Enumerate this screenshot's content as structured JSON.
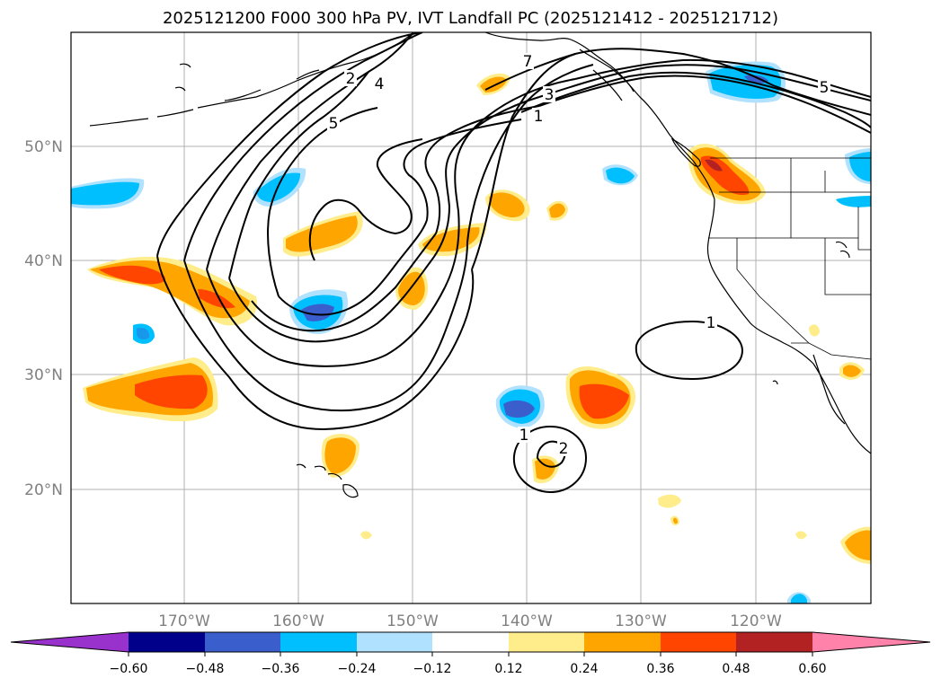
{
  "title": "2025121200 F000 300 hPa PV, IVT Landfall PC (2025121412 - 2025121712)",
  "lat_labels": [
    "50°N",
    "40°N",
    "30°N",
    "20°N"
  ],
  "lon_labels": [
    "170°W",
    "160°W",
    "150°W",
    "140°W",
    "130°W",
    "120°W"
  ],
  "contour_labels": [
    "2",
    "4",
    "5",
    "7",
    "3",
    "1",
    "5",
    "1",
    "1",
    "2"
  ],
  "colorbar": {
    "ticks": [
      "−0.60",
      "−0.48",
      "−0.36",
      "−0.24",
      "−0.12",
      "0.12",
      "0.24",
      "0.36",
      "0.48",
      "0.60"
    ],
    "colors": [
      "#9932cc",
      "#00008b",
      "#3a5fcd",
      "#00bfff",
      "#b0e2ff",
      "#ffffff",
      "#ffec8b",
      "#ffa500",
      "#ff4500",
      "#b22222",
      "#ff82ab"
    ]
  },
  "colors": {
    "gridline": "#b0b0b0",
    "contour": "#000000",
    "positive_light": "#ffec8b",
    "positive_mid": "#ffa500",
    "positive_strong": "#ff4500",
    "positive_max": "#b22222",
    "negative_light": "#b0e2ff",
    "negative_mid": "#00bfff",
    "negative_strong": "#3a5fcd"
  }
}
